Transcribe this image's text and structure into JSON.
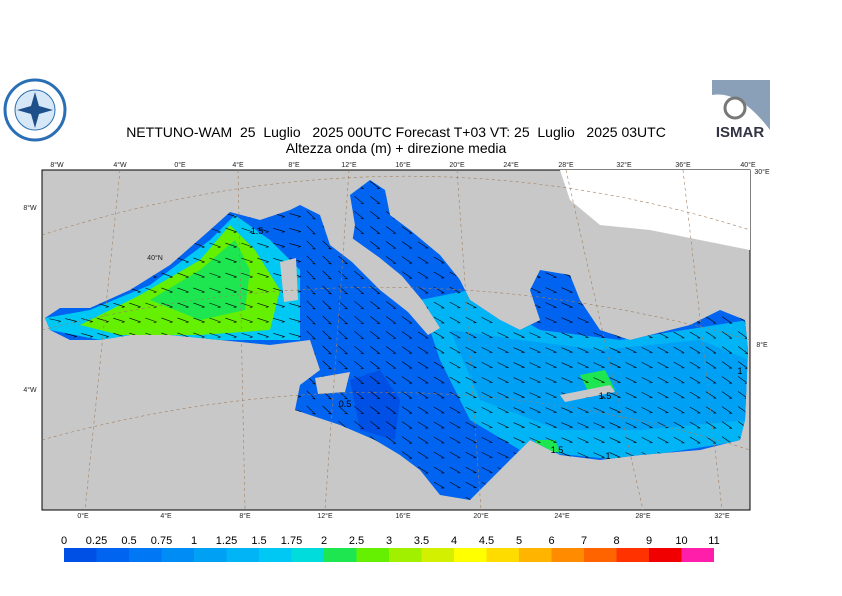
{
  "header": {
    "title": "NETTUNO-WAM  25  Luglio   2025 00UTC Forecast T+03 VT: 25  Luglio   2025 03UTC",
    "subtitle": "Altezza onda (m) + direzione media",
    "logo_right": "ISMAR"
  },
  "map": {
    "top_labels": [
      "8°W",
      "4°W",
      "0°E",
      "4°E",
      "8°E",
      "12°E",
      "16°E",
      "20°E",
      "24°E",
      "28°E",
      "32°E",
      "36°E",
      "40°E"
    ],
    "bottom_labels": [
      "0°E",
      "4°E",
      "8°E",
      "12°E",
      "16°E",
      "20°E",
      "24°E",
      "28°E",
      "32°E"
    ],
    "left_labels": [
      "8°W",
      "40°N",
      "4°W"
    ],
    "right_labels": [
      "30°E",
      "8°E"
    ],
    "contour_labels": [
      "1.5",
      "0.5",
      "1.5",
      "1",
      "1",
      "1.5"
    ]
  },
  "legend": {
    "levels": [
      0,
      0.25,
      0.5,
      0.75,
      1,
      1.25,
      1.5,
      1.75,
      2,
      2.5,
      3,
      3.5,
      4,
      4.5,
      5,
      6,
      7,
      8,
      9,
      10,
      11
    ],
    "colors": [
      "#0050e6",
      "#0064f0",
      "#0078f5",
      "#008cf5",
      "#00a0f5",
      "#00b4f5",
      "#00c8f5",
      "#00dcdc",
      "#1ee650",
      "#64f000",
      "#a0f000",
      "#d2f000",
      "#ffff00",
      "#ffdc00",
      "#ffb400",
      "#ff8c00",
      "#ff6400",
      "#ff3200",
      "#f00000",
      "#ff1eaa"
    ]
  }
}
